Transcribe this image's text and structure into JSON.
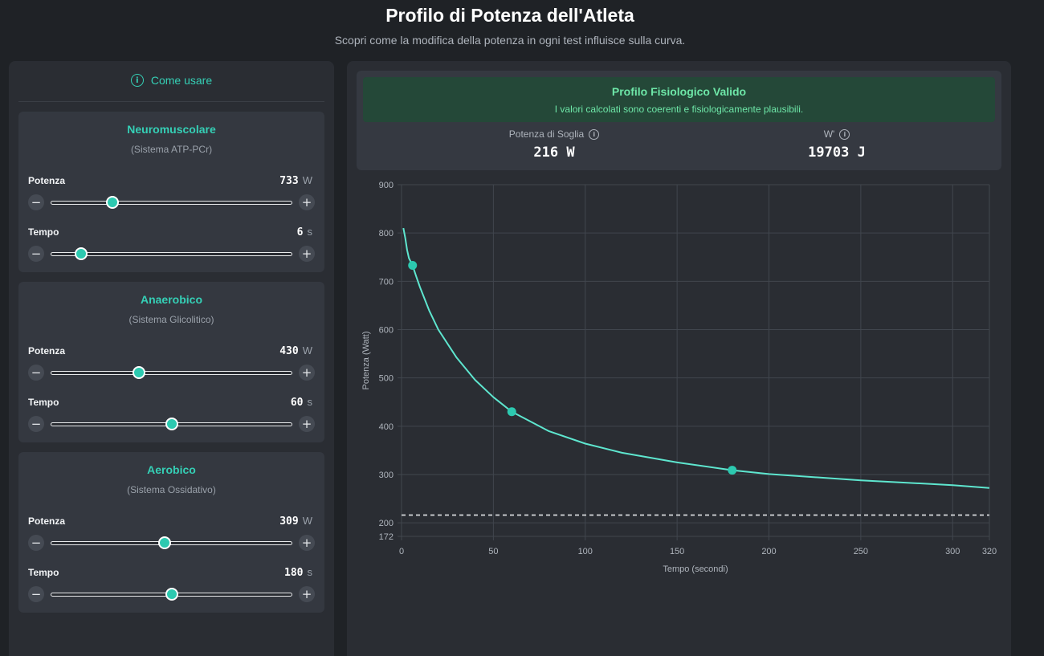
{
  "header": {
    "title": "Profilo di Potenza dell'Atleta",
    "subtitle": "Scopri come la modifica della potenza in ogni test influisce sulla curva."
  },
  "left_panel": {
    "how_to_label": "Come usare",
    "cards": [
      {
        "title": "Neuromuscolare",
        "subtitle": "(Sistema ATP-PCr)",
        "power": {
          "label": "Potenza",
          "value": "733",
          "unit": "W",
          "fraction": 0.255
        },
        "time": {
          "label": "Tempo",
          "value": "6",
          "unit": "s",
          "fraction": 0.125
        }
      },
      {
        "title": "Anaerobico",
        "subtitle": "(Sistema Glicolitico)",
        "power": {
          "label": "Potenza",
          "value": "430",
          "unit": "W",
          "fraction": 0.365
        },
        "time": {
          "label": "Tempo",
          "value": "60",
          "unit": "s",
          "fraction": 0.5
        }
      },
      {
        "title": "Aerobico",
        "subtitle": "(Sistema Ossidativo)",
        "power": {
          "label": "Potenza",
          "value": "309",
          "unit": "W",
          "fraction": 0.47
        },
        "time": {
          "label": "Tempo",
          "value": "180",
          "unit": "s",
          "fraction": 0.5
        }
      }
    ],
    "minus_symbol": "−",
    "plus_symbol": "+"
  },
  "summary": {
    "valid_title": "Profilo Fisiologico Valido",
    "valid_text": "I valori calcolati sono coerenti e fisiologicamente plausibili.",
    "threshold_label": "Potenza di Soglia",
    "threshold_value": "216 W",
    "wprime_label": "W'",
    "wprime_value": "19703 J"
  },
  "colors": {
    "accent": "#35d0b6",
    "curve": "#5ee6cf",
    "valid_bg": "#244838",
    "valid_text": "#6ee7a8"
  },
  "chart_data": {
    "type": "line",
    "xlabel": "Tempo (secondi)",
    "ylabel": "Potenza (Watt)",
    "xlim": [
      0,
      320
    ],
    "ylim": [
      172,
      900
    ],
    "x_ticks": [
      "0",
      "50",
      "100",
      "150",
      "200",
      "250",
      "300",
      "320"
    ],
    "y_ticks": [
      "900",
      "800",
      "700",
      "600",
      "500",
      "400",
      "300",
      "200",
      "172"
    ],
    "grid": true,
    "series": [
      {
        "type": "curve",
        "x": [
          1,
          2,
          3,
          4,
          6,
          8,
          10,
          15,
          20,
          30,
          40,
          50,
          60,
          80,
          100,
          120,
          150,
          180,
          200,
          250,
          300,
          320
        ],
        "y": [
          810,
          790,
          765,
          748,
          733,
          710,
          688,
          640,
          600,
          542,
          496,
          460,
          430,
          390,
          364,
          345,
          325,
          309,
          301,
          288,
          278,
          272
        ]
      },
      {
        "type": "points",
        "x": [
          6,
          60,
          180
        ],
        "y": [
          733,
          430,
          309
        ]
      },
      {
        "type": "threshold",
        "y": 216
      }
    ]
  }
}
